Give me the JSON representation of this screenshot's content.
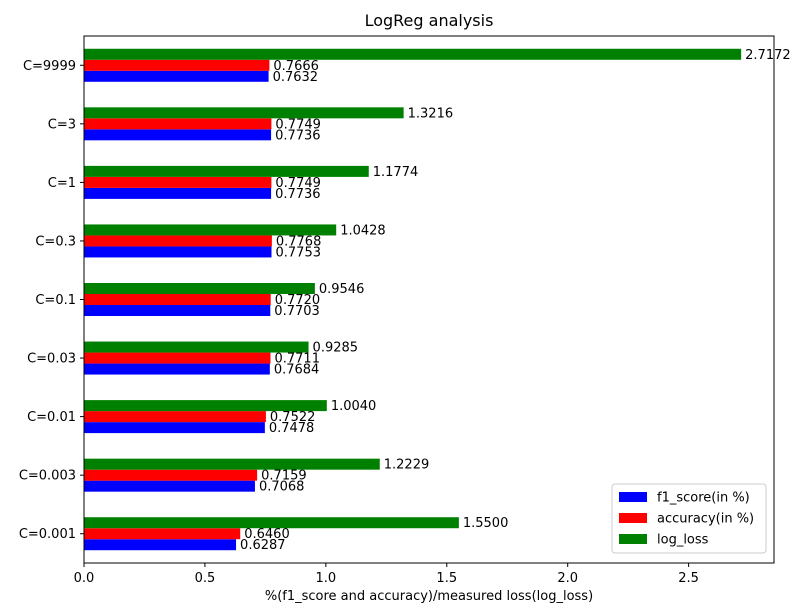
{
  "chart_data": {
    "type": "bar",
    "orientation": "horizontal",
    "title": "LogReg analysis",
    "xlabel": "%(f1_score and accuracy)/measured loss(log_loss)",
    "ylabel": "",
    "categories": [
      "C=0.001",
      "C=0.003",
      "C=0.01",
      "C=0.03",
      "C=0.1",
      "C=0.3",
      "C=1",
      "C=3",
      "C=9999"
    ],
    "series": [
      {
        "name": "f1_score(in %)",
        "color": "#0000ff",
        "values": [
          0.6287,
          0.7068,
          0.7478,
          0.7684,
          0.7703,
          0.7753,
          0.7736,
          0.7736,
          0.7632
        ],
        "labels": [
          "0.6287",
          "0.7068",
          "0.7478",
          "0.7684",
          "0.7703",
          "0.7753",
          "0.7736",
          "0.7736",
          "0.7632"
        ]
      },
      {
        "name": "accuracy(in %)",
        "color": "#ff0000",
        "values": [
          0.646,
          0.7159,
          0.7522,
          0.7711,
          0.772,
          0.7768,
          0.7749,
          0.7749,
          0.7666
        ],
        "labels": [
          "0.6460",
          "0.7159",
          "0.7522",
          "0.7711",
          "0.7720",
          "0.7768",
          "0.7749",
          "0.7749",
          "0.7666"
        ]
      },
      {
        "name": "log_loss",
        "color": "#008000",
        "values": [
          1.55,
          1.2229,
          1.004,
          0.9285,
          0.9546,
          1.0428,
          1.1774,
          1.3216,
          2.7172
        ],
        "labels": [
          "1.5500",
          "1.2229",
          "1.0040",
          "0.9285",
          "0.9546",
          "1.0428",
          "1.1774",
          "1.3216",
          "2.7172"
        ]
      }
    ],
    "xlim": [
      0,
      2.853
    ],
    "xticks": [
      0.0,
      0.5,
      1.0,
      1.5,
      2.0,
      2.5
    ],
    "xtick_labels": [
      "0.0",
      "0.5",
      "1.0",
      "1.5",
      "2.0",
      "2.5"
    ],
    "grid": false,
    "legend_position": "lower-right"
  }
}
